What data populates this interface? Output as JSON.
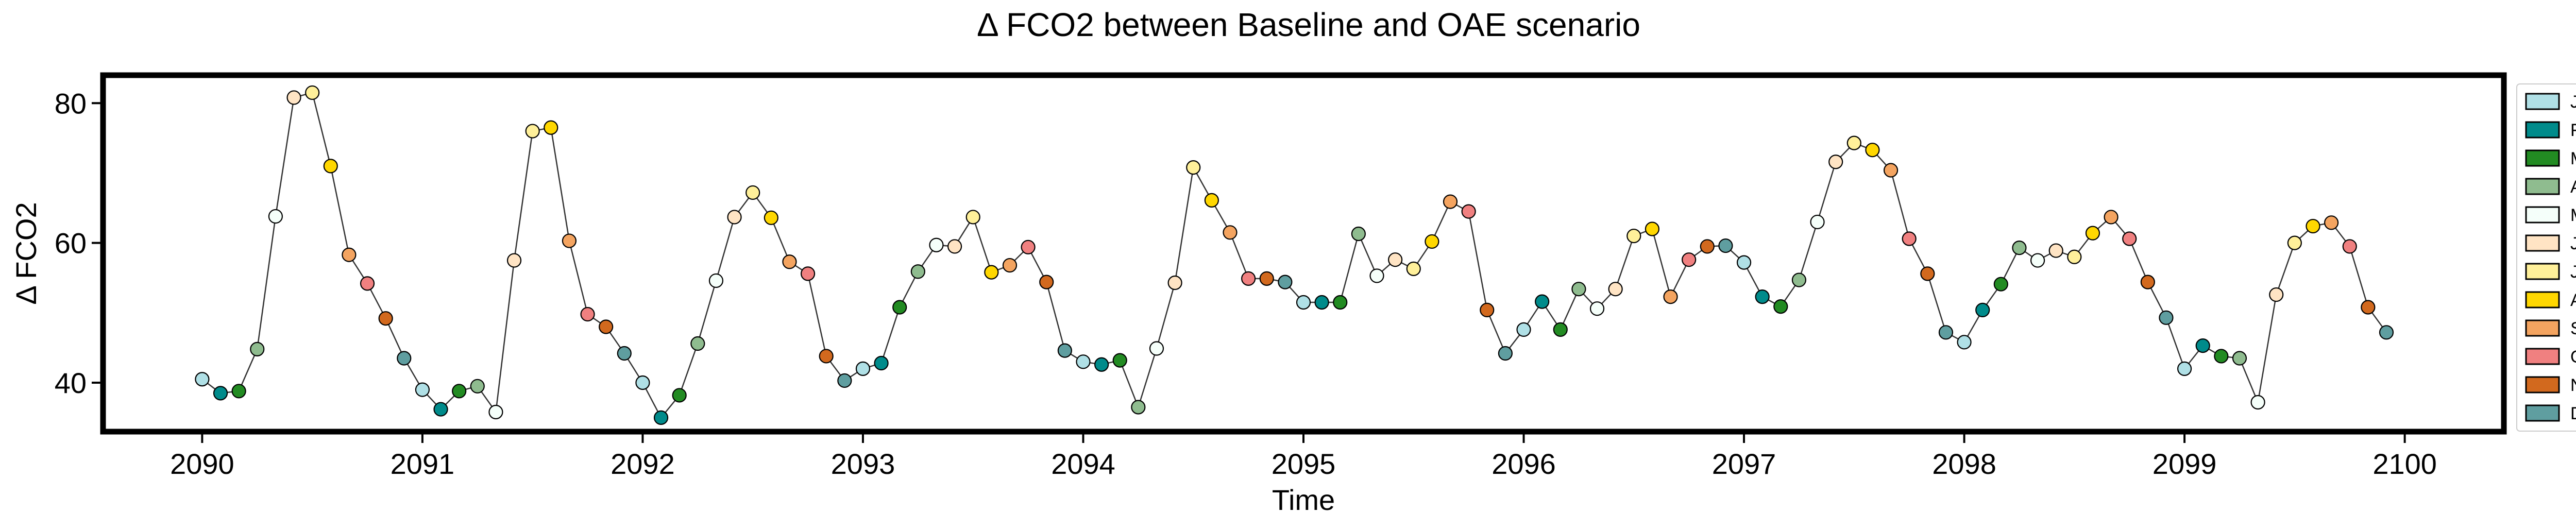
{
  "chart_data": {
    "type": "line",
    "title": "Δ FCO2 between Baseline and OAE scenario",
    "xlabel": "Time",
    "ylabel": "Δ FCO2",
    "xlim": [
      2089.55,
      2100.45
    ],
    "ylim": [
      33,
      84
    ],
    "xticks": [
      2090,
      2091,
      2092,
      2093,
      2094,
      2095,
      2096,
      2097,
      2098,
      2099,
      2100
    ],
    "yticks": [
      40,
      60,
      80
    ],
    "grid": false,
    "legend_position": "right",
    "months": [
      {
        "name": "Jan",
        "color": "#b0e0e6"
      },
      {
        "name": "Feb",
        "color": "#008b8b"
      },
      {
        "name": "Mar",
        "color": "#228b22"
      },
      {
        "name": "Apr",
        "color": "#8fbc8f"
      },
      {
        "name": "May",
        "color": "#f5fffa"
      },
      {
        "name": "June",
        "color": "#ffe4c4"
      },
      {
        "name": "July",
        "color": "#fff09a"
      },
      {
        "name": "Aug",
        "color": "#ffd700"
      },
      {
        "name": "Sept",
        "color": "#f4a460"
      },
      {
        "name": "Oct",
        "color": "#f08080"
      },
      {
        "name": "Nov",
        "color": "#d2691e"
      },
      {
        "name": "Dec",
        "color": "#5f9ea0"
      }
    ],
    "series": [
      {
        "start_year": 2090,
        "values": [
          40.5,
          38.5,
          38.8,
          44.8,
          63.8,
          80.8,
          81.5,
          71.0,
          58.3,
          54.2,
          49.2,
          43.5,
          39.0,
          36.2,
          38.8,
          39.5,
          35.8,
          57.5,
          76.0,
          76.5,
          60.3,
          49.8,
          48.0,
          44.2,
          40.0,
          35.0,
          38.2,
          45.6,
          54.6,
          63.7,
          67.2,
          63.6,
          57.3,
          55.6,
          43.8,
          40.3,
          42.0,
          42.8,
          50.8,
          55.9,
          59.7,
          59.5,
          63.7,
          55.8,
          56.8,
          59.4,
          54.4,
          44.6,
          43.0,
          42.6,
          43.2,
          36.5,
          44.9,
          54.3,
          70.8,
          66.1,
          61.5,
          54.9,
          54.9,
          54.4,
          51.5,
          51.5,
          51.5,
          61.3,
          55.3,
          57.6,
          56.3,
          60.2,
          65.9,
          64.5,
          50.4,
          44.2,
          47.6,
          51.6,
          47.6,
          53.4,
          50.6,
          53.4,
          61.0,
          62.0,
          52.3,
          57.6,
          59.5,
          59.6,
          57.2,
          52.3,
          50.9,
          54.7,
          63.0,
          71.6,
          74.3,
          73.3,
          70.4,
          60.6,
          55.6,
          47.2,
          45.8,
          50.4,
          54.1,
          59.3,
          57.5,
          58.9,
          58.0,
          61.4,
          63.7,
          60.6,
          54.4,
          49.3,
          42.0,
          45.3,
          43.8,
          43.5,
          37.2,
          52.6,
          60.0,
          62.4,
          62.9,
          59.5,
          50.8,
          47.2
        ]
      }
    ]
  }
}
